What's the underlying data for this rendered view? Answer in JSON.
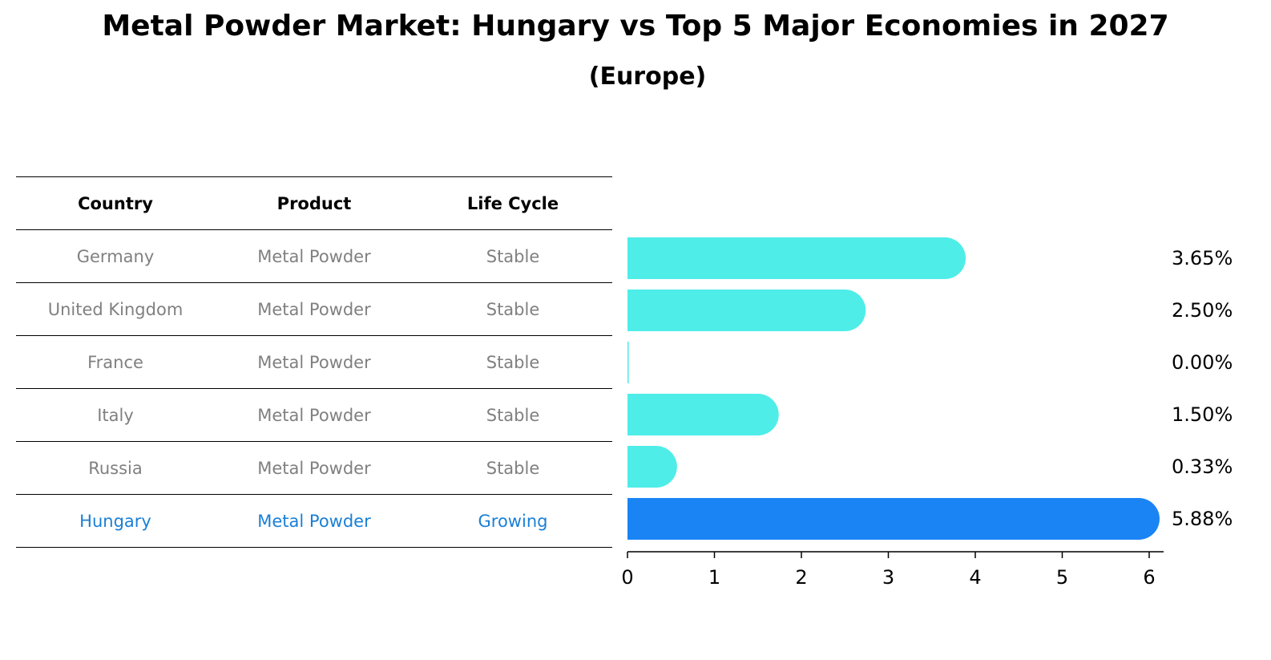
{
  "title": "Metal Powder Market: Hungary vs Top 5 Major Economies in 2027",
  "subtitle": "(Europe)",
  "table": {
    "headers": [
      "Country",
      "Product",
      "Life Cycle"
    ],
    "rows": [
      [
        "Germany",
        "Metal Powder",
        "Stable"
      ],
      [
        "United Kingdom",
        "Metal Powder",
        "Stable"
      ],
      [
        "France",
        "Metal Powder",
        "Stable"
      ],
      [
        "Italy",
        "Metal Powder",
        "Stable"
      ],
      [
        "Russia",
        "Metal Powder",
        "Stable"
      ],
      [
        "Hungary",
        "Metal Powder",
        "Growing"
      ]
    ],
    "highlight_row": 5
  },
  "chart_data": {
    "type": "bar",
    "orientation": "horizontal",
    "categories": [
      "Germany",
      "United Kingdom",
      "France",
      "Italy",
      "Russia",
      "Hungary"
    ],
    "values": [
      3.65,
      2.5,
      0.0,
      1.5,
      0.33,
      5.88
    ],
    "value_labels": [
      "3.65%",
      "2.50%",
      "0.00%",
      "1.50%",
      "0.33%",
      "5.88%"
    ],
    "xlim": [
      0,
      6
    ],
    "xticks": [
      "0",
      "1",
      "2",
      "3",
      "4",
      "5",
      "6"
    ],
    "colors": {
      "default": "#4eede8",
      "highlight": "#1a84f5"
    },
    "highlight_index": 5,
    "grid": false,
    "legend": "none"
  }
}
